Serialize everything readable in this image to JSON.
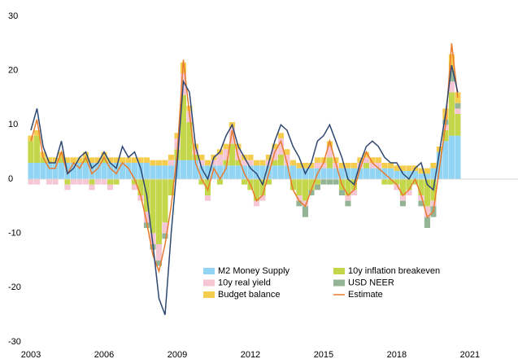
{
  "chart_data": {
    "type": "bar",
    "x": [
      2003,
      2003.25,
      2003.5,
      2003.75,
      2004,
      2004.25,
      2004.5,
      2004.75,
      2005,
      2005.25,
      2005.5,
      2005.75,
      2006,
      2006.25,
      2006.5,
      2006.75,
      2007,
      2007.25,
      2007.5,
      2007.75,
      2008,
      2008.25,
      2008.5,
      2008.75,
      2009,
      2009.25,
      2009.5,
      2009.75,
      2010,
      2010.25,
      2010.5,
      2010.75,
      2011,
      2011.25,
      2011.5,
      2011.75,
      2012,
      2012.25,
      2012.5,
      2012.75,
      2013,
      2013.25,
      2013.5,
      2013.75,
      2014,
      2014.25,
      2014.5,
      2014.75,
      2015,
      2015.25,
      2015.5,
      2015.75,
      2016,
      2016.25,
      2016.5,
      2016.75,
      2017,
      2017.25,
      2017.5,
      2017.75,
      2018,
      2018.25,
      2018.5,
      2018.75,
      2019,
      2019.25,
      2019.5,
      2019.75,
      2020,
      2020.25,
      2020.5
    ],
    "xlim": [
      2003,
      2022.97
    ],
    "xticks": [
      2003,
      2006,
      2009,
      2012,
      2015,
      2018,
      2021
    ],
    "ylim": [
      -30,
      30
    ],
    "yticks": [
      -30,
      -20,
      -10,
      0,
      10,
      20,
      30
    ],
    "series": [
      {
        "name": "M2 Money Supply",
        "type": "bar",
        "color": "#92d4f4",
        "values": [
          3,
          3,
          3,
          3,
          3,
          3,
          3,
          3,
          3,
          3,
          3,
          3,
          3,
          3,
          3,
          3,
          3,
          3,
          3,
          3,
          2.5,
          2.5,
          2.5,
          2.5,
          3.5,
          3.5,
          3.5,
          3.5,
          2.5,
          2.5,
          2.5,
          2.5,
          2.5,
          2.5,
          2.5,
          2.5,
          2.5,
          2.5,
          2.5,
          2.5,
          2.5,
          2.5,
          2.5,
          2.5,
          2,
          2,
          2,
          2,
          2,
          2,
          2,
          2,
          2,
          2,
          2,
          2,
          2,
          2,
          2,
          2,
          1.5,
          1.5,
          1.5,
          1.5,
          1,
          1,
          2,
          5,
          7,
          8,
          8
        ]
      },
      {
        "name": "10y inflation breakeven",
        "type": "bar",
        "color": "#c4d74a",
        "values": [
          4,
          5,
          1,
          0,
          0,
          1,
          -1,
          0,
          0,
          1,
          -1,
          0,
          1,
          -1,
          -1,
          0,
          0,
          -1,
          -3,
          -6,
          -10,
          -12,
          -8,
          -3,
          2,
          12,
          7,
          1,
          -1,
          -3,
          0,
          -1,
          1,
          4,
          1,
          -1,
          -2,
          -4,
          -3,
          -1,
          1,
          2,
          0,
          -2,
          -3,
          -4,
          -2,
          -1,
          0,
          2,
          0,
          -2,
          -3,
          -2,
          0,
          1,
          0,
          0,
          -1,
          -1,
          -1,
          -3,
          -2,
          -1,
          -3,
          -5,
          -4,
          0,
          2,
          8,
          4
        ]
      },
      {
        "name": "10y real yield",
        "type": "bar",
        "color": "#f5c6d3",
        "values": [
          -1,
          -1,
          0,
          -1,
          -1,
          0,
          -1,
          -1,
          -1,
          -1,
          -1,
          -1,
          -1,
          -1,
          0,
          0,
          0,
          -1,
          -1,
          -2,
          -2,
          -3,
          -2,
          1,
          2,
          4,
          2,
          1,
          1,
          -1,
          1,
          2,
          2,
          3,
          2,
          1,
          1,
          -1,
          -1,
          1,
          2,
          3,
          2,
          0,
          -1,
          -1,
          0,
          1,
          1,
          2,
          1,
          0,
          -1,
          -1,
          1,
          1,
          1,
          1,
          0,
          0,
          -1,
          -1,
          -1,
          0,
          -1,
          -2,
          -1,
          0,
          1,
          2,
          1
        ]
      },
      {
        "name": "USD NEER",
        "type": "bar",
        "color": "#93b596",
        "values": [
          0,
          0,
          0,
          0,
          0,
          0,
          0,
          0,
          0,
          0,
          0,
          0,
          0,
          0,
          0,
          0,
          0,
          0,
          0,
          -1,
          -1,
          -1,
          -1,
          0,
          0,
          0,
          0,
          0,
          0,
          0,
          0,
          0,
          0,
          0,
          0,
          0,
          0,
          0,
          0,
          0,
          0,
          0,
          0,
          0,
          -1,
          -2,
          -1,
          -1,
          -1,
          -1,
          -1,
          -1,
          -1,
          0,
          0,
          0,
          0,
          0,
          0,
          0,
          0,
          -1,
          0,
          0,
          -1,
          -2,
          -2,
          0,
          1,
          2,
          1
        ]
      },
      {
        "name": "Budget balance",
        "type": "bar",
        "color": "#f5cd4e",
        "values": [
          1,
          1,
          1,
          1,
          1,
          1,
          1,
          1,
          1,
          1,
          1,
          1,
          1,
          1,
          1,
          1,
          1,
          1,
          1,
          1,
          1,
          1,
          1,
          1,
          1,
          2,
          1,
          1,
          1,
          1,
          1,
          1,
          1,
          1,
          1,
          1,
          1,
          1,
          1,
          1,
          1,
          1,
          1,
          1,
          1,
          1,
          1,
          1,
          1,
          1,
          1,
          1,
          1,
          1,
          1,
          1,
          1,
          1,
          1,
          1,
          1,
          1,
          1,
          1,
          1,
          1,
          1,
          1,
          2,
          3,
          2
        ]
      },
      {
        "name": "Estimate",
        "type": "line",
        "color": "#e97a2e",
        "values": [
          7,
          11,
          4,
          2,
          2,
          5,
          1,
          3,
          2,
          4,
          1,
          2,
          4,
          2,
          1,
          3,
          2,
          0,
          -3,
          -8,
          -14,
          -17,
          -12,
          -5,
          5,
          22,
          12,
          3,
          0,
          -2,
          2,
          0,
          2,
          9,
          4,
          1,
          -1,
          -4,
          -3,
          1,
          5,
          7,
          3,
          -2,
          -4,
          -5,
          -2,
          1,
          3,
          7,
          3,
          -1,
          -3,
          -2,
          2,
          5,
          3,
          2,
          1,
          0,
          -1,
          -3,
          -2,
          0,
          -3,
          -7,
          -6,
          2,
          10,
          25,
          15
        ]
      },
      {
        "type": "line",
        "color": "#2f4770",
        "values": [
          9,
          13,
          6,
          3,
          3,
          7,
          1,
          2,
          4,
          5,
          2,
          3,
          5,
          3,
          2,
          6,
          4,
          5,
          2,
          -3,
          -12,
          -22,
          -25,
          -10,
          3,
          18,
          16,
          6,
          2,
          0,
          4,
          5,
          8,
          10,
          6,
          4,
          2,
          1,
          -1,
          3,
          7,
          10,
          9,
          6,
          4,
          1,
          3,
          7,
          8,
          10,
          7,
          4,
          0,
          -1,
          3,
          6,
          7,
          6,
          4,
          3,
          3,
          1,
          0,
          2,
          3,
          -1,
          -2,
          5,
          12,
          21,
          16
        ]
      }
    ]
  }
}
